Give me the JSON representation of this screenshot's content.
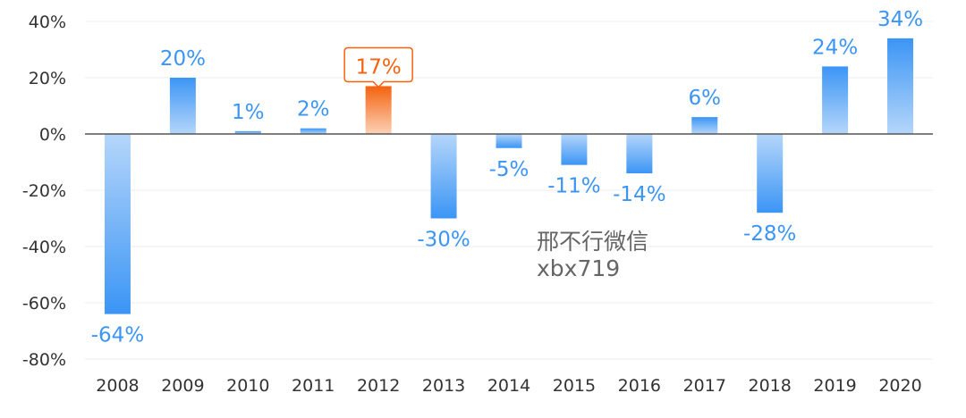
{
  "chart_data": {
    "type": "bar",
    "title": "",
    "xlabel": "",
    "ylabel": "",
    "categories": [
      "2008",
      "2009",
      "2010",
      "2011",
      "2012",
      "2013",
      "2014",
      "2015",
      "2016",
      "2017",
      "2018",
      "2019",
      "2020"
    ],
    "values": [
      -64,
      20,
      1,
      2,
      17,
      -30,
      -5,
      -11,
      -14,
      6,
      -28,
      24,
      34
    ],
    "value_labels": [
      "-64%",
      "20%",
      "1%",
      "2%",
      "17%",
      "-30%",
      "-5%",
      "-11%",
      "-14%",
      "6%",
      "-28%",
      "24%",
      "34%"
    ],
    "ylim": [
      -80,
      40
    ],
    "yticks": [
      40,
      20,
      0,
      -20,
      -40,
      -60,
      -80
    ],
    "ytick_labels": [
      "40%",
      "20%",
      "0%",
      "-20%",
      "-40%",
      "-60%",
      "-80%"
    ],
    "highlight_category": "2012",
    "grid": true,
    "colors": {
      "bar": "#3b95f5",
      "bar_light": "#b5d6fa",
      "highlight": "#f5620f",
      "highlight_light": "#fbd2b6",
      "label": "#3b95f5",
      "highlight_label": "#f5620f",
      "axis": "#555555",
      "grid": "#eeeeee"
    }
  },
  "watermark": {
    "line1": "邢不行微信",
    "line2": "xbx719"
  }
}
